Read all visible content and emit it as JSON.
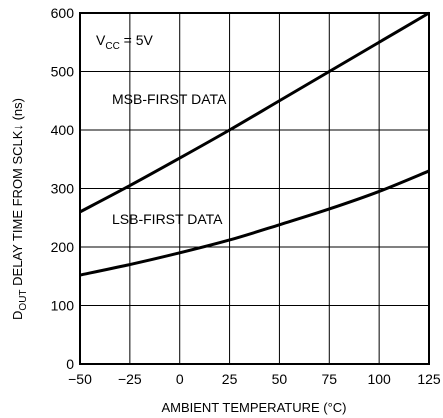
{
  "chart_data": {
    "type": "line",
    "xlabel": "AMBIENT TEMPERATURE (°C)",
    "ylabel": {
      "main_prefix": "D",
      "subscript": "OUT",
      "main_suffix": " DELAY TIME FROM SCLK↓ (ns)"
    },
    "xlim": [
      -50,
      125
    ],
    "ylim": [
      0,
      600
    ],
    "x_ticks": [
      -50,
      -25,
      0,
      25,
      50,
      75,
      100,
      125
    ],
    "x_tick_labels": [
      "−50",
      "−25",
      "0",
      "25",
      "50",
      "75",
      "100",
      "125"
    ],
    "y_ticks": [
      0,
      100,
      200,
      300,
      400,
      500,
      600
    ],
    "y_tick_labels": [
      "0",
      "100",
      "200",
      "300",
      "400",
      "500",
      "600"
    ],
    "grid": true,
    "series": [
      {
        "name": "MSB-FIRST DATA",
        "x": [
          -50,
          -25,
          0,
          25,
          50,
          75,
          100,
          125
        ],
        "y": [
          260,
          305,
          352,
          400,
          450,
          500,
          550,
          600
        ]
      },
      {
        "name": "LSB-FIRST DATA",
        "x": [
          -50,
          -25,
          0,
          25,
          50,
          75,
          100,
          125
        ],
        "y": [
          152,
          170,
          190,
          212,
          238,
          265,
          295,
          330
        ]
      }
    ],
    "annotations": {
      "condition_prefix": "V",
      "condition_subscript": "CC",
      "condition_suffix": " = 5V"
    }
  }
}
